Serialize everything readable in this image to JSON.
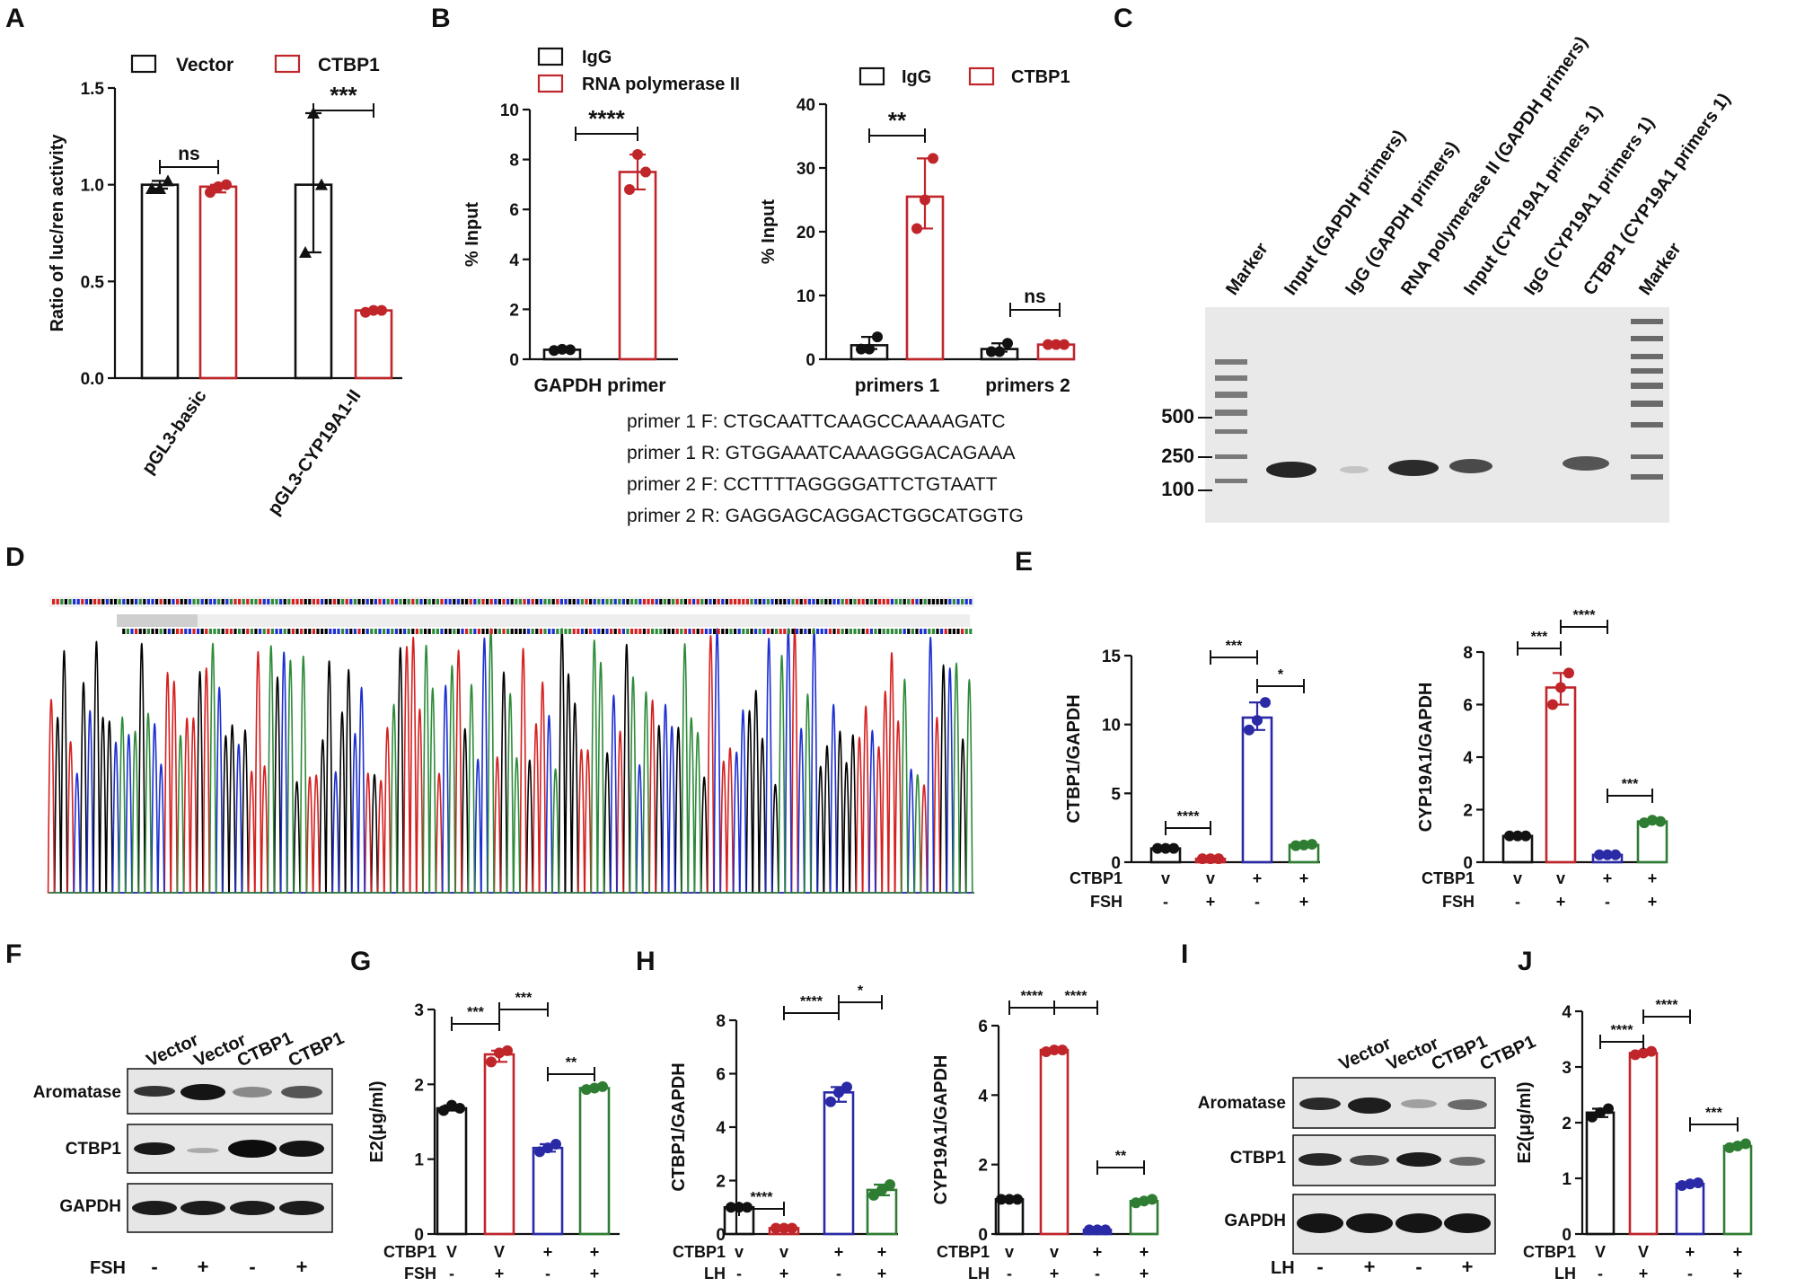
{
  "panel_labels": [
    "A",
    "B",
    "C",
    "D",
    "E",
    "F",
    "G",
    "H",
    "I",
    "J"
  ],
  "colors": {
    "black": "#111111",
    "red": "#c0252a",
    "blue": "#2a2aa6",
    "green": "#2e7d32"
  },
  "primers": [
    "primer 1 F: CTGCAATTCAAGCCAAAAGATC",
    "primer 1 R: GTGGAAATCAAAGGGACAGAAA",
    "primer 2 F: CCTTTTAGGGGATTCTGTAATT",
    "primer 2 R: GAGGAGCAGGACTGGCATGGTG"
  ],
  "gel_C": {
    "lanes": [
      "Marker",
      "Input (GAPDH primers)",
      "IgG (GAPDH primers)",
      "RNA polymerase II (GAPDH primers)",
      "Input (CYP19A1 primers 1)",
      "IgG (CYP19A1 primers 1)",
      "CTBP1 (CYP19A1 primers 1)",
      "Marker"
    ],
    "size_labels": [
      "500",
      "250",
      "100"
    ]
  },
  "blot_F": {
    "lanes": [
      "Vector",
      "Vector",
      "CTBP1",
      "CTBP1"
    ],
    "rows": [
      "Aromatase",
      "CTBP1",
      "GAPDH"
    ],
    "treatment": "FSH",
    "signs": [
      "-",
      "+",
      "-",
      "+"
    ]
  },
  "blot_I": {
    "lanes": [
      "Vector",
      "Vector",
      "CTBP1",
      "CTBP1"
    ],
    "rows": [
      "Aromatase",
      "CTBP1",
      "GAPDH"
    ],
    "treatment": "LH",
    "signs": [
      "-",
      "+",
      "-",
      "+"
    ]
  },
  "chart_data": [
    {
      "panel": "A",
      "type": "bar",
      "categories": [
        "pGL3-basic",
        "pGL3-CYP19A1-II"
      ],
      "series": [
        {
          "name": "Vector",
          "values": [
            1.0,
            1.0
          ],
          "points": [
            [
              0.98,
              1.02,
              0.98
            ],
            [
              0.65,
              1.0,
              1.37
            ]
          ]
        },
        {
          "name": "CTBP1",
          "values": [
            0.99,
            0.35
          ],
          "points": [
            [
              0.96,
              1.0,
              0.99
            ],
            [
              0.34,
              0.35,
              0.35
            ]
          ]
        }
      ],
      "ylabel": "Ratio of luc/ren activity",
      "ylim": [
        0,
        1.5
      ],
      "yticks": [
        "0.0",
        "0.5",
        "1.0",
        "1.5"
      ],
      "annotations": [
        "ns",
        "***"
      ]
    },
    {
      "panel": "B1",
      "type": "bar",
      "categories": [
        "GAPDH primer"
      ],
      "series": [
        {
          "name": "IgG",
          "values": [
            0.38
          ],
          "points": [
            [
              0.35,
              0.38,
              0.4
            ]
          ]
        },
        {
          "name": "RNA polymerase II",
          "values": [
            7.5
          ],
          "points": [
            [
              6.8,
              7.5,
              8.2
            ]
          ]
        }
      ],
      "ylabel": "% Input",
      "ylim": [
        0,
        10
      ],
      "yticks": [
        "0",
        "2",
        "4",
        "6",
        "8",
        "10"
      ],
      "annotations": [
        "****"
      ]
    },
    {
      "panel": "B2",
      "type": "bar",
      "categories": [
        "primers 1",
        "primers 2"
      ],
      "series": [
        {
          "name": "IgG",
          "values": [
            2.2,
            1.6
          ],
          "points": [
            [
              1.6,
              3.5,
              1.6
            ],
            [
              1.2,
              2.5,
              1.2
            ]
          ]
        },
        {
          "name": "CTBP1",
          "values": [
            25.5,
            2.3
          ],
          "points": [
            [
              20.5,
              31.5,
              25.0
            ],
            [
              2.3,
              2.3,
              2.3
            ]
          ]
        }
      ],
      "ylabel": "% Input",
      "ylim": [
        0,
        40
      ],
      "yticks": [
        "0",
        "10",
        "20",
        "30",
        "40"
      ],
      "annotations": [
        "**",
        "ns"
      ]
    },
    {
      "panel": "E1",
      "type": "bar",
      "categories": [
        "v/-",
        "v/+",
        "+/-",
        "+/+"
      ],
      "values": [
        1.0,
        0.25,
        10.5,
        1.25
      ],
      "points": [
        [
          1.0,
          1.0,
          1.0
        ],
        [
          0.25,
          0.25,
          0.25
        ],
        [
          9.6,
          11.6,
          10.3
        ],
        [
          1.2,
          1.3,
          1.25
        ]
      ],
      "colors": [
        "#111111",
        "#c0252a",
        "#2a2aa6",
        "#2e7d32"
      ],
      "ylabel": "CTBP1/GAPDH",
      "ylim": [
        0,
        15
      ],
      "yticks": [
        "0",
        "5",
        "10",
        "15"
      ],
      "row1_label": "CTBP1",
      "row1": [
        "v",
        "v",
        "+",
        "+"
      ],
      "row2_label": "FSH",
      "row2": [
        "-",
        "+",
        "-",
        "+"
      ],
      "annotations": [
        "****",
        "***",
        "*"
      ]
    },
    {
      "panel": "E2",
      "type": "bar",
      "categories": [
        "v/-",
        "v/+",
        "+/-",
        "+/+"
      ],
      "values": [
        1.0,
        6.65,
        0.28,
        1.55
      ],
      "points": [
        [
          1.0,
          1.0,
          1.0
        ],
        [
          6.0,
          7.2,
          6.65
        ],
        [
          0.28,
          0.28,
          0.28
        ],
        [
          1.5,
          1.55,
          1.6
        ]
      ],
      "colors": [
        "#111111",
        "#c0252a",
        "#2a2aa6",
        "#2e7d32"
      ],
      "ylabel": "CYP19A1/GAPDH",
      "ylim": [
        0,
        8
      ],
      "yticks": [
        "0",
        "2",
        "4",
        "6",
        "8"
      ],
      "row1_label": "CTBP1",
      "row1": [
        "v",
        "v",
        "+",
        "+"
      ],
      "row2_label": "FSH",
      "row2": [
        "-",
        "+",
        "-",
        "+"
      ],
      "annotations": [
        "***",
        "****",
        "***"
      ]
    },
    {
      "panel": "G",
      "type": "bar",
      "categories": [
        "V/-",
        "V/+",
        "+/-",
        "+/+"
      ],
      "values": [
        1.68,
        2.4,
        1.15,
        1.95
      ],
      "points": [
        [
          1.65,
          1.68,
          1.72
        ],
        [
          2.3,
          2.45,
          2.42
        ],
        [
          1.1,
          1.2,
          1.15
        ],
        [
          1.93,
          1.97,
          1.95
        ]
      ],
      "colors": [
        "#111111",
        "#c0252a",
        "#2a2aa6",
        "#2e7d32"
      ],
      "ylabel": "E2(μg/ml)",
      "ylim": [
        0,
        3
      ],
      "yticks": [
        "0",
        "1",
        "2",
        "3"
      ],
      "row1_label": "CTBP1",
      "row1": [
        "V",
        "V",
        "+",
        "+"
      ],
      "row2_label": "FSH",
      "row2": [
        "-",
        "+",
        "-",
        "+"
      ],
      "annotations": [
        "***",
        "***",
        "**"
      ]
    },
    {
      "panel": "H1",
      "type": "bar",
      "categories": [
        "v/-",
        "v/+",
        "+/-",
        "+/+"
      ],
      "values": [
        1.0,
        0.22,
        5.3,
        1.65
      ],
      "points": [
        [
          1.0,
          1.0,
          1.0
        ],
        [
          0.22,
          0.22,
          0.22
        ],
        [
          4.95,
          5.5,
          5.3
        ],
        [
          1.45,
          1.85,
          1.65
        ]
      ],
      "colors": [
        "#111111",
        "#c0252a",
        "#2a2aa6",
        "#2e7d32"
      ],
      "ylabel": "CTBP1/GAPDH",
      "ylim": [
        0,
        8
      ],
      "yticks": [
        "0",
        "2",
        "4",
        "6",
        "8"
      ],
      "row1_label": "CTBP1",
      "row1": [
        "v",
        "v",
        "+",
        "+"
      ],
      "row2_label": "LH",
      "row2": [
        "-",
        "+",
        "-",
        "+"
      ],
      "annotations": [
        "****",
        "****",
        "*"
      ]
    },
    {
      "panel": "H2",
      "type": "bar",
      "categories": [
        "v/-",
        "v/+",
        "+/-",
        "+/+"
      ],
      "values": [
        1.0,
        5.3,
        0.12,
        0.95
      ],
      "points": [
        [
          1.0,
          1.0,
          1.0
        ],
        [
          5.25,
          5.3,
          5.3
        ],
        [
          0.12,
          0.12,
          0.12
        ],
        [
          0.9,
          1.0,
          0.95
        ]
      ],
      "colors": [
        "#111111",
        "#c0252a",
        "#2a2aa6",
        "#2e7d32"
      ],
      "ylabel": "CYP19A1/GAPDH",
      "ylim": [
        0,
        6
      ],
      "yticks": [
        "0",
        "2",
        "4",
        "6"
      ],
      "row1_label": "CTBP1",
      "row1": [
        "v",
        "v",
        "+",
        "+"
      ],
      "row2_label": "LH",
      "row2": [
        "-",
        "+",
        "-",
        "+"
      ],
      "annotations": [
        "****",
        "****",
        "**"
      ]
    },
    {
      "panel": "J",
      "type": "bar",
      "categories": [
        "V/-",
        "V/+",
        "+/-",
        "+/+"
      ],
      "values": [
        2.18,
        3.25,
        0.9,
        1.58
      ],
      "points": [
        [
          2.1,
          2.25,
          2.18
        ],
        [
          3.22,
          3.28,
          3.25
        ],
        [
          0.87,
          0.92,
          0.9
        ],
        [
          1.55,
          1.62,
          1.58
        ]
      ],
      "colors": [
        "#111111",
        "#c0252a",
        "#2a2aa6",
        "#2e7d32"
      ],
      "ylabel": "E2(μg/ml)",
      "ylim": [
        0,
        4
      ],
      "yticks": [
        "0",
        "1",
        "2",
        "3",
        "4"
      ],
      "row1_label": "CTBP1",
      "row1": [
        "V",
        "V",
        "+",
        "+"
      ],
      "row2_label": "LH",
      "row2": [
        "-",
        "+",
        "-",
        "+"
      ],
      "annotations": [
        "****",
        "****",
        "***"
      ]
    }
  ]
}
